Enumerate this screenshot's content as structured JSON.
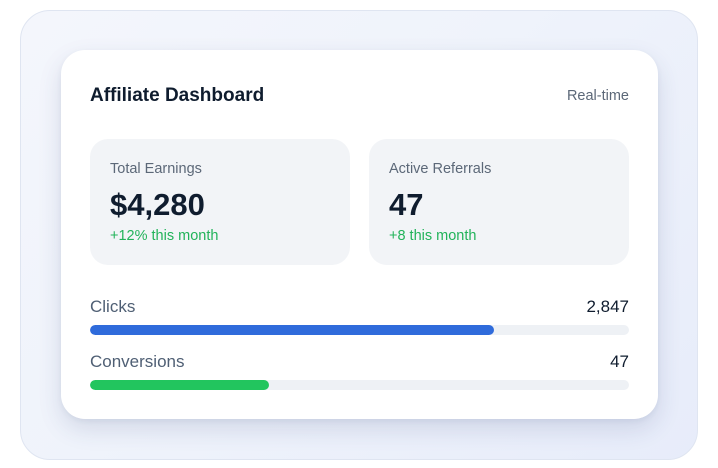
{
  "header": {
    "title": "Affiliate Dashboard",
    "status": "Real-time"
  },
  "stats": [
    {
      "label": "Total Earnings",
      "value": "$4,280",
      "delta": "+12% this month"
    },
    {
      "label": "Active Referrals",
      "value": "47",
      "delta": "+8 this month"
    }
  ],
  "metrics": [
    {
      "label": "Clicks",
      "value": "2,847",
      "progress": 0.75,
      "color": "#2f6bdb"
    },
    {
      "label": "Conversions",
      "value": "47",
      "progress": 0.333,
      "color": "#22c55e"
    }
  ],
  "colors": {
    "positive": "#22b35a",
    "text_primary": "#0f1c2e",
    "text_secondary": "#5c6878"
  }
}
